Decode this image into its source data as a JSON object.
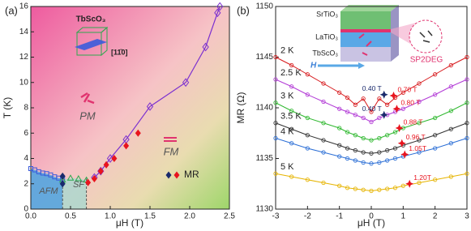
{
  "chart_data": [
    {
      "type": "phase-diagram",
      "title": "(a)",
      "x_label": "μH (T)",
      "y_label": "T (K)",
      "xlim": [
        0,
        2.5
      ],
      "ylim": [
        0,
        16
      ],
      "xticks": [
        {
          "value": 0,
          "label": "0.0"
        },
        0.5,
        {
          "value": 1,
          "label": "1.0"
        },
        1.5,
        {
          "value": 2,
          "label": "2.0"
        },
        2.5
      ],
      "yticks": [
        0,
        2,
        4,
        6,
        8,
        10,
        12,
        14,
        16
      ],
      "labels": {
        "material": "TbScO₃",
        "direction": "[11̄0]",
        "pm": "PM",
        "fm": "FM",
        "afm": "AFM",
        "sf": "SF"
      },
      "legend": {
        "label": "MR"
      },
      "series": [
        {
          "marker": "square",
          "color": "#3b5bdb",
          "x": [
            0,
            0.05,
            0.1,
            0.15,
            0.2,
            0.25,
            0.3,
            0.35,
            0.4
          ],
          "values": [
            3.2,
            3.1,
            2.95,
            2.85,
            2.8,
            2.7,
            2.55,
            2.45,
            2.4
          ]
        },
        {
          "marker": "triangle",
          "color": "#2fa84f",
          "x": [
            0.4,
            0.5,
            0.6,
            0.7
          ],
          "values": [
            2.3,
            2.45,
            2.4,
            2.3
          ]
        },
        {
          "marker": "diamond-open",
          "line": true,
          "color": "#7b2fd0",
          "x": [
            0.8,
            0.88,
            1.0,
            1.2,
            1.5,
            1.95,
            2.2,
            2.35,
            2.38
          ],
          "values": [
            2.5,
            3.0,
            4.0,
            5.5,
            8.1,
            10,
            12.8,
            15.5,
            16
          ]
        },
        {
          "marker": "diamond",
          "color": "#e8141e",
          "x": [
            0.72,
            0.8,
            0.88,
            0.95,
            1.05,
            1.2,
            1.35
          ],
          "values": [
            2.1,
            2.4,
            3.0,
            3.5,
            4.0,
            5.0,
            6.0
          ]
        },
        {
          "marker": "diamond",
          "color": "#1a2a6c",
          "x": [
            0.4,
            0.4
          ],
          "values": [
            2.6,
            2.0
          ]
        }
      ]
    },
    {
      "type": "line",
      "title": "(b)",
      "x_label": "μH (T)",
      "y_label": "MR (Ω)",
      "xlim": [
        -3,
        3
      ],
      "ylim": [
        1130,
        1150
      ],
      "xticks": [
        -3,
        -2,
        -1,
        0,
        1,
        2,
        3
      ],
      "yticks": [
        1130,
        1135,
        1140,
        1145,
        1150
      ],
      "inset": {
        "top": "SrTiO₃",
        "middle": "LaTiO₃",
        "bottom": "TbScO₃",
        "field": "H",
        "gas": "SP2DEG"
      },
      "x": [
        -3,
        -2.5,
        -2,
        -1.5,
        -1,
        -0.75,
        -0.5,
        -0.25,
        0,
        0.25,
        0.5,
        0.75,
        1,
        1.5,
        2,
        2.5,
        3
      ],
      "series": [
        {
          "name": "2 K",
          "color": "#d7191c",
          "values": [
            1145,
            1144.2,
            1143.3,
            1142.4,
            1141.5,
            1141.0,
            1140.3,
            1140.9,
            1139.6,
            1140.9,
            1140.3,
            1141.0,
            1141.5,
            1142.4,
            1143.3,
            1144.2,
            1145
          ]
        },
        {
          "name": "2.5 K",
          "color": "#b23ad6",
          "values": [
            1142.8,
            1142.1,
            1141.3,
            1140.6,
            1139.9,
            1139.6,
            1139.3,
            1139.0,
            1138.6,
            1139.0,
            1139.3,
            1139.6,
            1139.9,
            1140.6,
            1141.3,
            1142.1,
            1142.8
          ]
        },
        {
          "name": "3 K",
          "color": "#2fb82f",
          "values": [
            1140.5,
            1139.7,
            1139.0,
            1138.5,
            1138.0,
            1137.6,
            1137.3,
            1137.0,
            1136.8,
            1137.0,
            1137.3,
            1137.6,
            1138.0,
            1138.5,
            1139.0,
            1139.7,
            1140.5
          ]
        },
        {
          "name": "3.5 K",
          "color": "#333333",
          "values": [
            1138.5,
            1137.9,
            1137.3,
            1136.8,
            1136.3,
            1136.0,
            1135.8,
            1135.6,
            1135.5,
            1135.6,
            1135.8,
            1136.0,
            1136.3,
            1136.8,
            1137.3,
            1137.9,
            1138.5
          ]
        },
        {
          "name": "4 K",
          "color": "#2c6fd6",
          "values": [
            1137.0,
            1136.5,
            1136.0,
            1135.6,
            1135.2,
            1135.0,
            1134.8,
            1134.6,
            1134.5,
            1134.6,
            1134.8,
            1135.0,
            1135.2,
            1135.6,
            1136.0,
            1136.5,
            1137.0
          ]
        },
        {
          "name": "5 K",
          "color": "#e6b400",
          "values": [
            1133.5,
            1133.2,
            1132.9,
            1132.6,
            1132.3,
            1132.1,
            1132.0,
            1131.9,
            1131.8,
            1131.9,
            1132.0,
            1132.1,
            1132.3,
            1132.6,
            1132.9,
            1133.2,
            1133.5
          ]
        }
      ],
      "annotations": [
        {
          "x": 0.4,
          "y": 1141.3,
          "label": "0.40 T",
          "color": "#1a2a6c"
        },
        {
          "x": 0.7,
          "y": 1141.2,
          "label": "0.70 T",
          "color": "#e8141e"
        },
        {
          "x": 0.8,
          "y": 1139.9,
          "label": "0.80 T",
          "color": "#e8141e"
        },
        {
          "x": 0.4,
          "y": 1139.3,
          "label": "0.40 T",
          "color": "#1a2a6c"
        },
        {
          "x": 0.88,
          "y": 1138.0,
          "label": "0.88 T",
          "color": "#e8141e"
        },
        {
          "x": 0.96,
          "y": 1136.5,
          "label": "0.96 T",
          "color": "#e8141e"
        },
        {
          "x": 1.05,
          "y": 1135.4,
          "label": "1.05T",
          "color": "#e8141e"
        },
        {
          "x": 1.2,
          "y": 1132.5,
          "label": "1.20T",
          "color": "#e8141e"
        }
      ]
    }
  ]
}
